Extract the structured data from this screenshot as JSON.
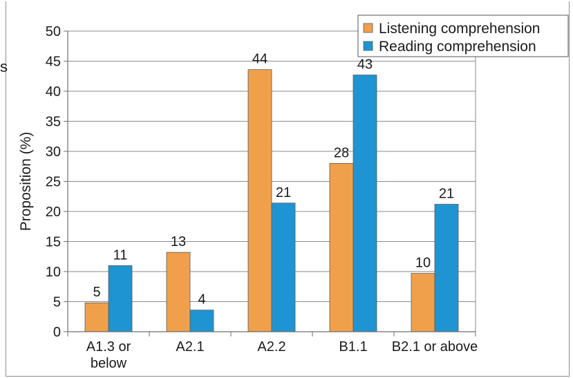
{
  "chart_data": {
    "type": "bar",
    "ylabel": "Proposition (%)",
    "xlabel": "",
    "ylim": [
      0,
      50
    ],
    "yticks": [
      0,
      5,
      10,
      15,
      20,
      25,
      30,
      35,
      40,
      45,
      50
    ],
    "grid": true,
    "legend_position": "top-right",
    "categories": [
      [
        "A1.3 or",
        "below"
      ],
      [
        "A2.1"
      ],
      [
        "A2.2"
      ],
      [
        "B1.1"
      ],
      [
        "B2.1 or above"
      ]
    ],
    "series": [
      {
        "name": "Listening comprehension",
        "color": "#f0a04b",
        "values": [
          4.8,
          13.2,
          43.6,
          28.0,
          9.7
        ],
        "labels": [
          "5",
          "13",
          "44",
          "28",
          "10"
        ]
      },
      {
        "name": "Reading comprehension",
        "color": "#1f94d2",
        "values": [
          11.0,
          3.6,
          21.4,
          42.7,
          21.2
        ],
        "labels": [
          "11",
          "4",
          "21",
          "43",
          "21"
        ]
      }
    ]
  },
  "stray_text": "s"
}
